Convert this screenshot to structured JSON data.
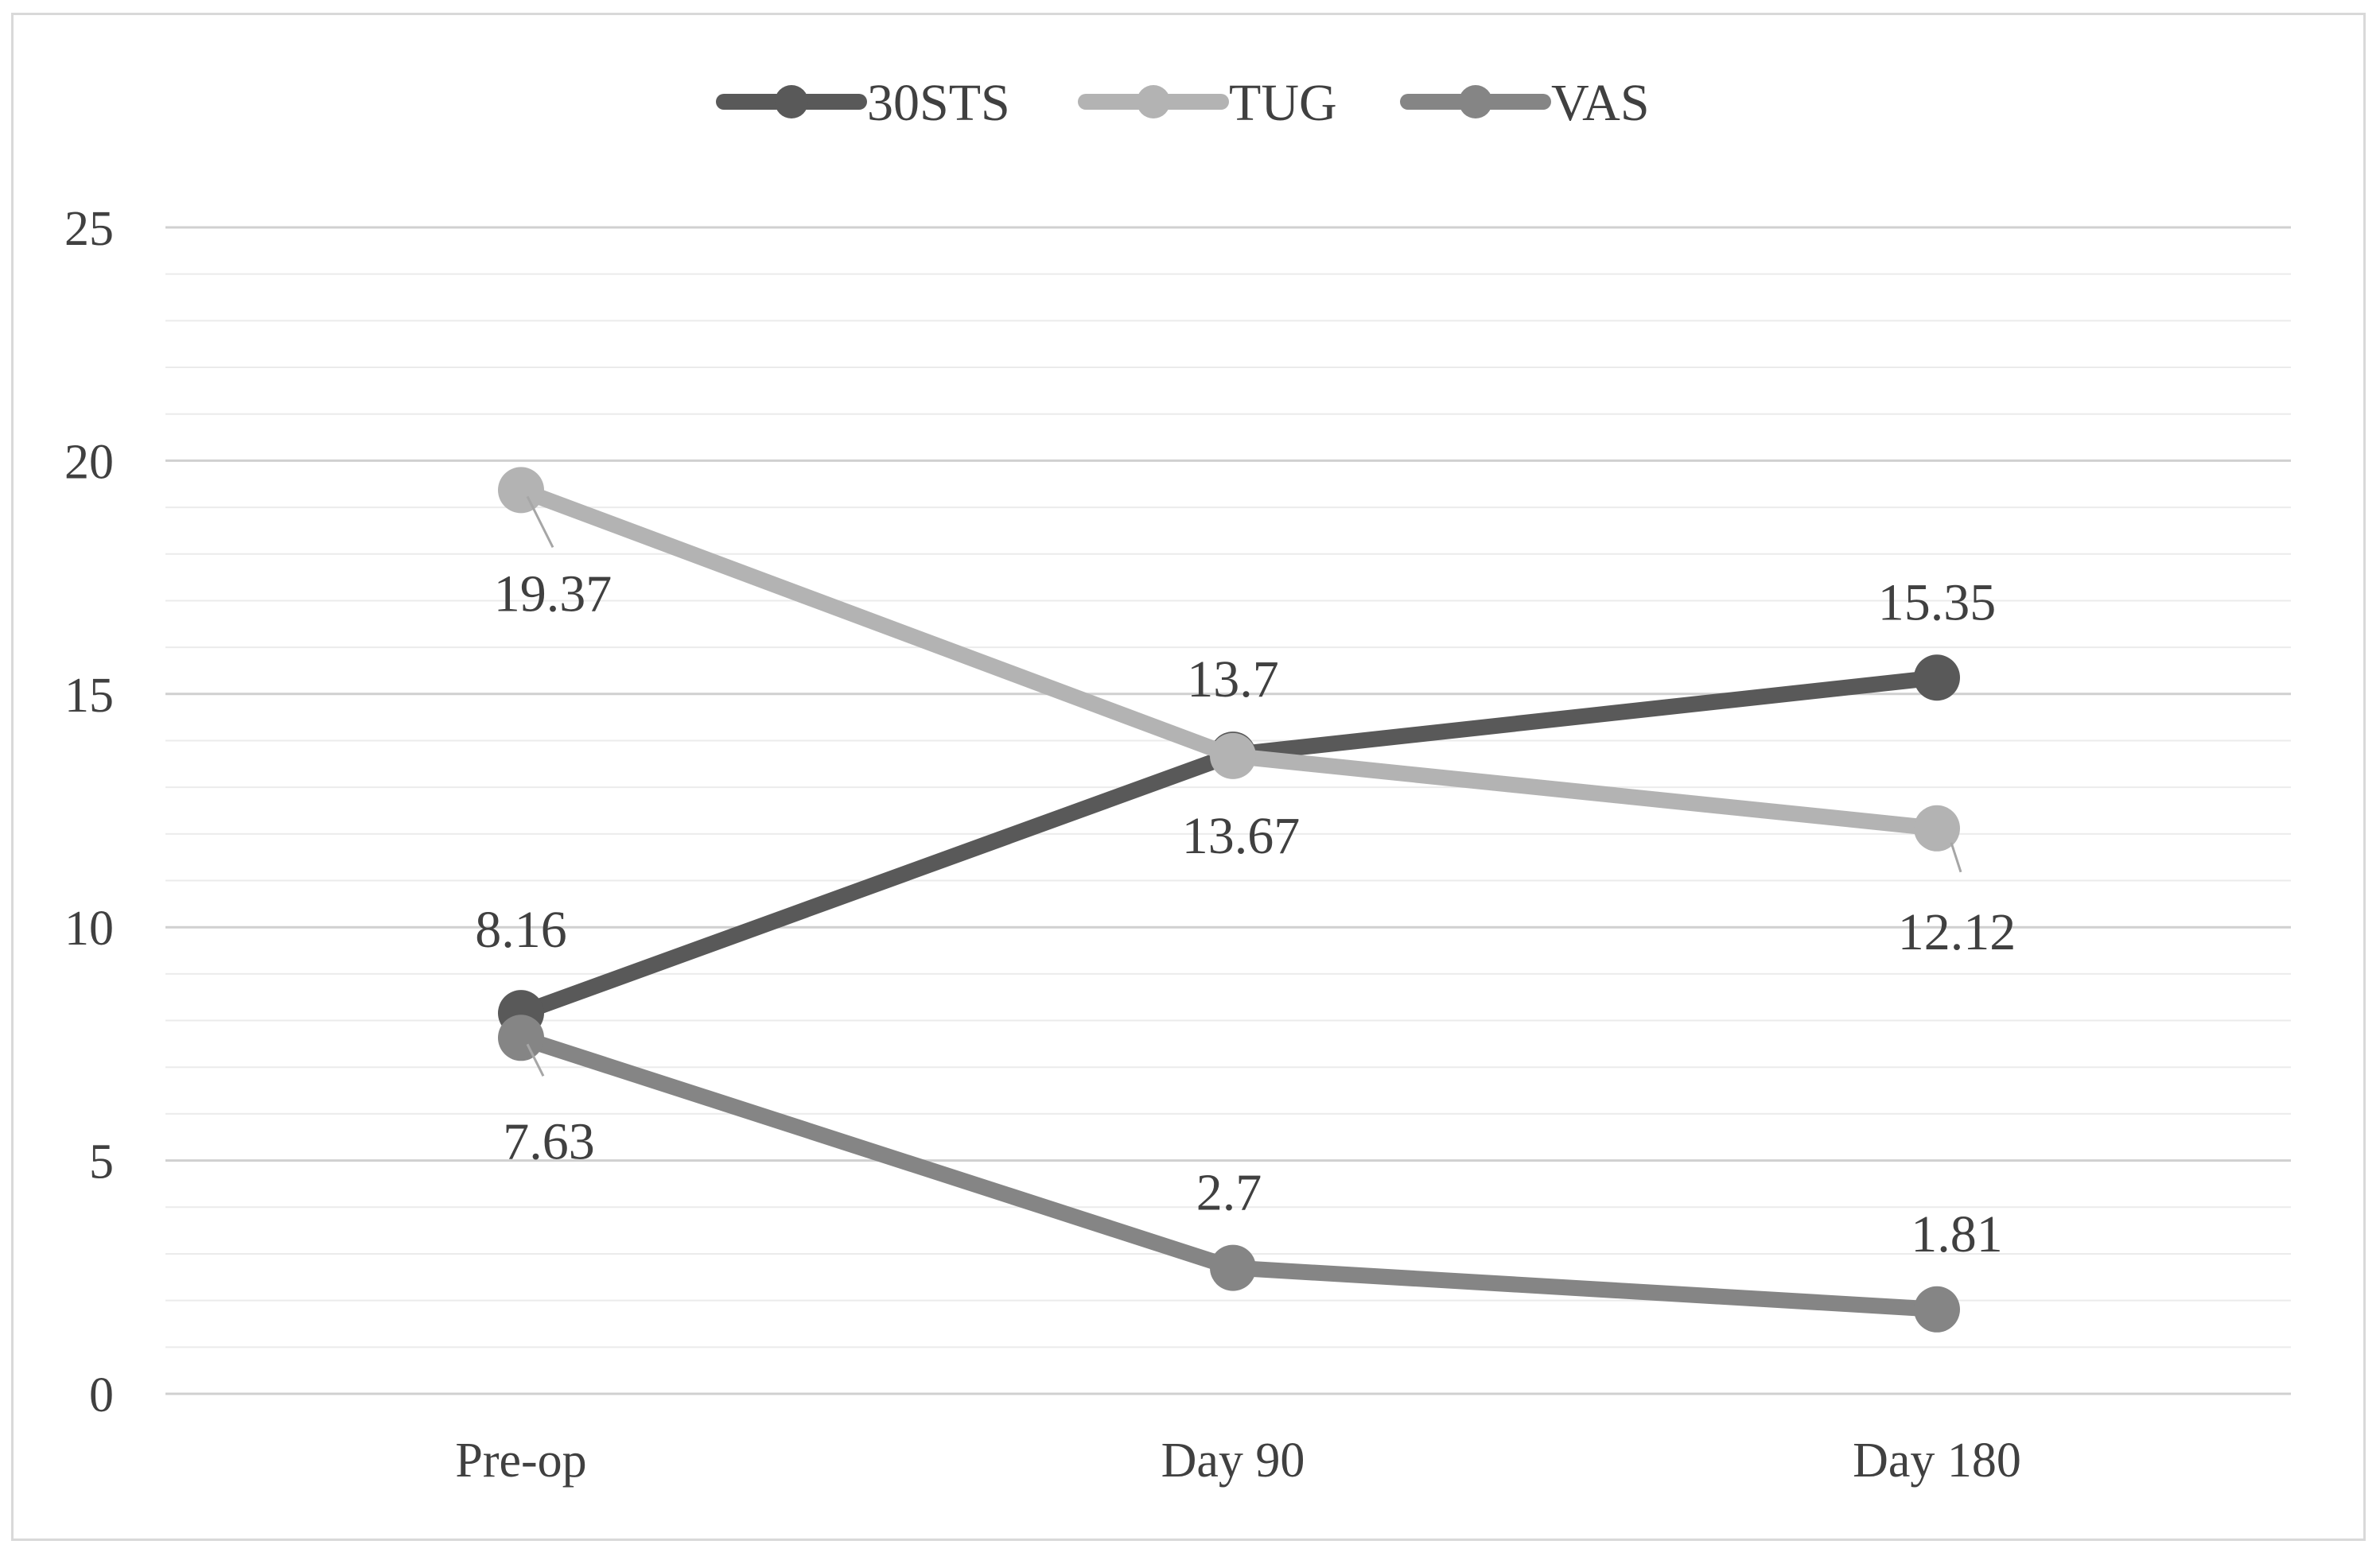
{
  "chart_data": {
    "type": "line",
    "title": "",
    "xlabel": "",
    "ylabel": "",
    "categories": [
      "Pre-op",
      "Day 90",
      "Day 180"
    ],
    "ylim": [
      0,
      25
    ],
    "yticks": [
      "0",
      "5",
      "10",
      "15",
      "20",
      "25"
    ],
    "grid": true,
    "legend_position": "top-center",
    "series": [
      {
        "name": "30STS",
        "values": [
          8.16,
          13.7,
          15.35
        ],
        "labels": [
          "8.16",
          "13.7",
          "15.35"
        ],
        "color": "#595959"
      },
      {
        "name": "TUG",
        "values": [
          19.37,
          13.67,
          12.12
        ],
        "labels": [
          "19.37",
          "13.67",
          "12.12"
        ],
        "color": "#b3b3b3"
      },
      {
        "name": "VAS",
        "values": [
          7.63,
          2.7,
          1.81
        ],
        "labels": [
          "7.63",
          "2.7",
          "1.81"
        ],
        "color": "#858585"
      }
    ]
  }
}
